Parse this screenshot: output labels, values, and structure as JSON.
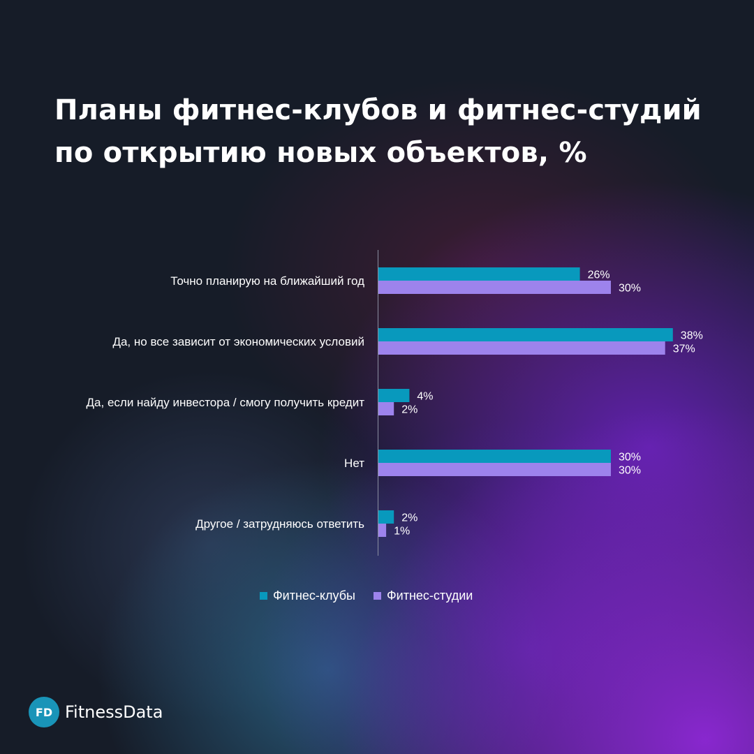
{
  "title": {
    "line1": "Планы фитнес-клубов и фитнес-студий",
    "line2": "по открытию новых объектов, %"
  },
  "chart_data": {
    "type": "bar",
    "orientation": "horizontal",
    "title": "Планы фитнес-клубов и фитнес-студий по открытию новых объектов, %",
    "categories": [
      "Точно планирую на ближайший год",
      "Да, но все зависит от экономических условий",
      "Да, если найду инвестора / смогу получить кредит",
      "Нет",
      "Другое / затрудняюсь ответить"
    ],
    "series": [
      {
        "name": "Фитнес-клубы",
        "color": "#0899bd",
        "values": [
          26,
          38,
          4,
          30,
          2
        ]
      },
      {
        "name": "Фитнес-студии",
        "color": "#9d83ec",
        "values": [
          30,
          37,
          2,
          30,
          1
        ]
      }
    ],
    "value_suffix": "%",
    "xlim": [
      0,
      40
    ],
    "grid": false,
    "legend_position": "bottom"
  },
  "legend": {
    "items": [
      {
        "label": "Фитнес-клубы",
        "color": "#0899bd"
      },
      {
        "label": "Фитнес-студии",
        "color": "#9d83ec"
      }
    ]
  },
  "brand": {
    "badge": "FD",
    "name": "FitnessData",
    "color": "#1994b8"
  }
}
